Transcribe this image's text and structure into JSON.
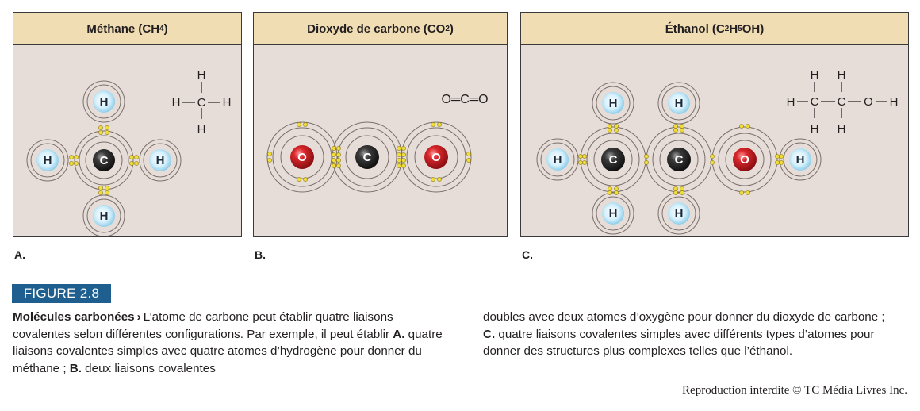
{
  "panels": [
    {
      "id": "A",
      "title_prefix": "Méthane (CH",
      "title_sub": "4",
      "title_suffix": ")",
      "letter": "A.",
      "structural": {
        "top": "H",
        "left": "H",
        "center": "C",
        "right": "H",
        "bottom": "H"
      }
    },
    {
      "id": "B",
      "title_prefix": "Dioxyde de carbone (CO",
      "title_sub": "2",
      "title_suffix": ")",
      "letter": "B.",
      "structural": {
        "text": "O═C═O"
      }
    },
    {
      "id": "C",
      "title_prefix": "Éthanol (C",
      "title_sub": "2",
      "title_mid": "H",
      "title_sub2": "5",
      "title_suffix": "OH)",
      "letter": "C.",
      "structural": {
        "h1": "H",
        "h2": "H",
        "h3": "H",
        "h4": "H",
        "h_left": "H",
        "c1": "C",
        "c2": "C",
        "o": "O",
        "h_right": "H"
      }
    }
  ],
  "atoms": {
    "H": "H",
    "C": "C",
    "O": "O"
  },
  "colors": {
    "panel_bg": "#e6ddd9",
    "header_bg": "#f1ddb4",
    "electron": "#f0dc3c",
    "hydrogen": "#bfe6f7",
    "carbon": "#2b2b2b",
    "oxygen": "#d9252a",
    "figure_label_bg": "#1f5f8f"
  },
  "figure": {
    "label": "FIGURE 2.8",
    "caption_title": "Molécules carbonées",
    "caption_arrow": "›",
    "col1_a": "L’atome de carbone peut établir quatre liaisons covalentes selon différentes configurations. Par exemple, il peut établir ",
    "col1_b": "A.",
    "col1_c": " quatre liaisons covalentes simples avec quatre atomes d’hydrogène pour donner du méthane ; ",
    "col1_d": "B.",
    "col1_e": " deux liaisons covalentes",
    "col2_a": "doubles avec deux atomes d’oxygène pour donner du dioxyde de carbone ; ",
    "col2_b": "C.",
    "col2_c": " quatre liaisons covalentes simples avec différents types d’atomes pour donner des structures plus complexes telles que l’éthanol."
  },
  "credit": "Reproduction interdite © TC Média Livres Inc."
}
